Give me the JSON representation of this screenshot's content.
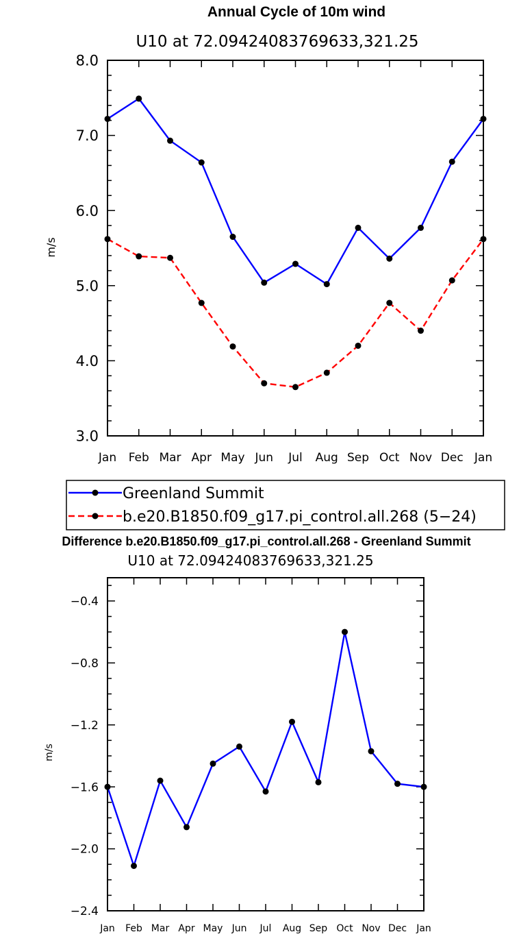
{
  "chart_data": [
    {
      "type": "line",
      "title": "Annual Cycle of 10m wind",
      "subtitle": "U10 at 72.09424083769633,321.25",
      "xlabel": "",
      "ylabel": "m/s",
      "categories": [
        "Jan",
        "Feb",
        "Mar",
        "Apr",
        "May",
        "Jun",
        "Jul",
        "Aug",
        "Sep",
        "Oct",
        "Nov",
        "Dec",
        "Jan"
      ],
      "ylim": [
        3.0,
        8.0
      ],
      "yticks": [
        "3.0",
        "4.0",
        "5.0",
        "6.0",
        "7.0",
        "8.0"
      ],
      "series": [
        {
          "name": "Greenland Summit",
          "color": "#0000ff",
          "dash": "solid",
          "values": [
            7.22,
            7.49,
            6.93,
            6.64,
            5.65,
            5.04,
            5.29,
            5.02,
            5.77,
            5.36,
            5.77,
            6.65,
            7.22
          ]
        },
        {
          "name": "b.e20.B1850.f09_g17.pi_control.all.268 (5−24)",
          "color": "#ff0000",
          "dash": "dashed",
          "values": [
            5.62,
            5.39,
            5.37,
            4.77,
            4.19,
            3.7,
            3.65,
            3.84,
            4.2,
            4.77,
            4.4,
            5.07,
            5.62
          ]
        }
      ],
      "legend": "below"
    },
    {
      "type": "line",
      "title": "Difference b.e20.B1850.f09_g17.pi_control.all.268 - Greenland Summit",
      "subtitle": "U10 at 72.09424083769633,321.25",
      "xlabel": "",
      "ylabel": "m/s",
      "categories": [
        "Jan",
        "Feb",
        "Mar",
        "Apr",
        "May",
        "Jun",
        "Jul",
        "Aug",
        "Sep",
        "Oct",
        "Nov",
        "Dec",
        "Jan"
      ],
      "ylim": [
        -2.4,
        -0.25
      ],
      "yticks": [
        "−2.4",
        "−2.0",
        "−1.6",
        "−1.2",
        "−0.8",
        "−0.4"
      ],
      "series": [
        {
          "color": "#0000ff",
          "dash": "solid",
          "values": [
            -1.6,
            -2.11,
            -1.56,
            -1.86,
            -1.45,
            -1.34,
            -1.63,
            -1.18,
            -1.57,
            -0.6,
            -1.37,
            -1.58,
            -1.6
          ]
        }
      ]
    }
  ]
}
